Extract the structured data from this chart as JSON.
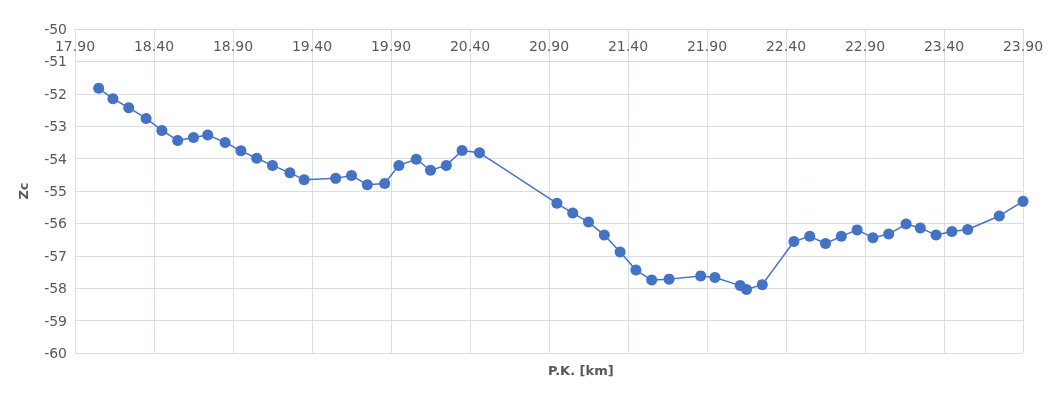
{
  "chart_data": {
    "type": "line",
    "xlabel": "P.K. [km]",
    "ylabel": "Zc",
    "x": [
      18.05,
      18.14,
      18.24,
      18.35,
      18.45,
      18.55,
      18.65,
      18.74,
      18.85,
      18.95,
      19.05,
      19.15,
      19.26,
      19.35,
      19.55,
      19.65,
      19.75,
      19.86,
      19.95,
      20.06,
      20.15,
      20.25,
      20.35,
      20.46,
      20.95,
      21.05,
      21.15,
      21.25,
      21.35,
      21.45,
      21.55,
      21.66,
      21.86,
      21.95,
      22.11,
      22.15,
      22.25,
      22.45,
      22.55,
      22.65,
      22.75,
      22.85,
      22.95,
      23.05,
      23.16,
      23.25,
      23.35,
      23.45,
      23.55,
      23.75,
      23.9
    ],
    "series": [
      {
        "color": "#4472c4",
        "values": [
          -51.83,
          -52.15,
          -52.43,
          -52.76,
          -53.13,
          -53.44,
          -53.35,
          -53.27,
          -53.5,
          -53.76,
          -53.99,
          -54.21,
          -54.44,
          -54.65,
          -54.61,
          -54.52,
          -54.81,
          -54.77,
          -54.21,
          -54.02,
          -54.36,
          -54.21,
          -53.75,
          -53.82,
          -55.38,
          -55.68,
          -55.96,
          -56.36,
          -56.88,
          -57.44,
          -57.75,
          -57.72,
          -57.62,
          -57.67,
          -57.92,
          -58.04,
          -57.89,
          -56.56,
          -56.4,
          -56.62,
          -56.4,
          -56.2,
          -56.44,
          -56.33,
          -56.02,
          -56.14,
          -56.36,
          -56.25,
          -56.19,
          -55.77,
          -55.32
        ]
      }
    ],
    "xlim": [
      17.9,
      23.9
    ],
    "xticks": [
      {
        "value": 17.9,
        "label": "17.90"
      },
      {
        "value": 18.4,
        "label": "18.40"
      },
      {
        "value": 18.9,
        "label": "18.90"
      },
      {
        "value": 19.4,
        "label": "19.40"
      },
      {
        "value": 19.9,
        "label": "19.90"
      },
      {
        "value": 20.4,
        "label": "20.40"
      },
      {
        "value": 20.9,
        "label": "20.90"
      },
      {
        "value": 21.4,
        "label": "21.40"
      },
      {
        "value": 21.9,
        "label": "21.90"
      },
      {
        "value": 22.4,
        "label": "22.40"
      },
      {
        "value": 22.9,
        "label": "22.90"
      },
      {
        "value": 23.4,
        "label": "23.40"
      },
      {
        "value": 23.9,
        "label": "23.90"
      }
    ],
    "ylim": [
      -60,
      -50
    ],
    "yticks": [
      -60,
      -59,
      -58,
      -57,
      -56,
      -55,
      -54,
      -53,
      -52,
      -51,
      -50
    ],
    "grid": true,
    "marker": "circle",
    "line_style": "solid"
  }
}
